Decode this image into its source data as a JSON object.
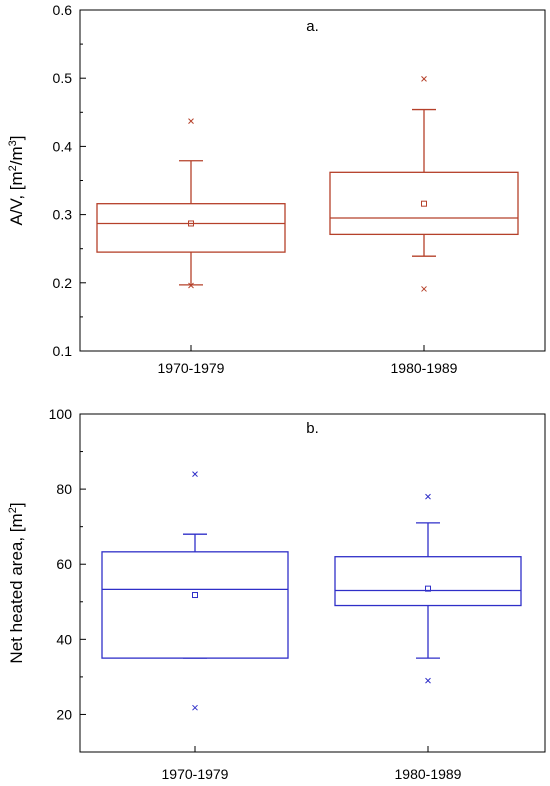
{
  "chart_data": [
    {
      "type": "box",
      "panel_label": "a.",
      "ylabel": "A/V, [m²/m³]",
      "ylabel_parts": [
        "A/V, [m",
        "2",
        "/m",
        "3",
        "]"
      ],
      "ylim": [
        0.1,
        0.6
      ],
      "yticks": [
        0.1,
        0.2,
        0.3,
        0.4,
        0.5,
        0.6
      ],
      "ytick_labels": [
        "0.1",
        "0.2",
        "0.3",
        "0.4",
        "0.5",
        "0.6"
      ],
      "categories": [
        "1970-1979",
        "1980-1989"
      ],
      "color": "#b5402a",
      "boxes": [
        {
          "category": "1970-1979",
          "whisker_low": 0.197,
          "q1": 0.245,
          "median": 0.287,
          "q3": 0.316,
          "whisker_high": 0.379,
          "mean": 0.287,
          "outlier_low": 0.196,
          "outlier_high": 0.437
        },
        {
          "category": "1980-1989",
          "whisker_low": 0.239,
          "q1": 0.271,
          "median": 0.295,
          "q3": 0.362,
          "whisker_high": 0.454,
          "mean": 0.316,
          "outlier_low": 0.191,
          "outlier_high": 0.499
        }
      ]
    },
    {
      "type": "box",
      "panel_label": "b.",
      "ylabel": "Net heated area, [m²]",
      "ylabel_parts": [
        "Net heated area, [m",
        "2",
        "]"
      ],
      "ylim": [
        10,
        100
      ],
      "yticks": [
        20,
        40,
        60,
        80,
        100
      ],
      "ytick_labels": [
        "20",
        "40",
        "60",
        "80",
        "100"
      ],
      "categories": [
        "1970-1979",
        "1980-1989"
      ],
      "color": "#2f2fc8",
      "boxes": [
        {
          "category": "1970-1979",
          "whisker_low": 35,
          "q1": 35,
          "median": 53.3,
          "q3": 63.3,
          "whisker_high": 68,
          "mean": 51.8,
          "outlier_low": 21.8,
          "outlier_high": 84
        },
        {
          "category": "1980-1989",
          "whisker_low": 35,
          "q1": 49,
          "median": 53,
          "q3": 62,
          "whisker_high": 71,
          "mean": 53.5,
          "outlier_low": 29,
          "outlier_high": 78
        }
      ]
    }
  ]
}
